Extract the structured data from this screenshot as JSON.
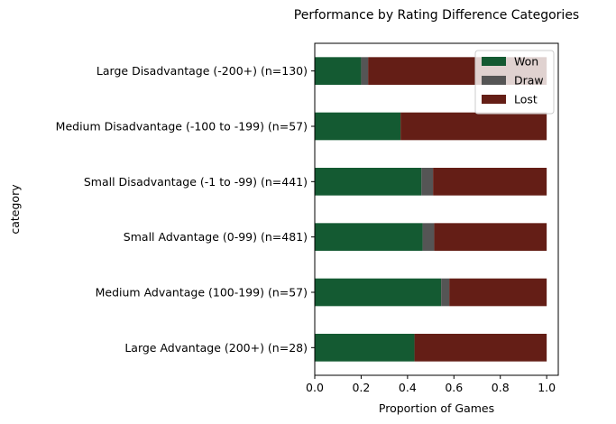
{
  "chart_data": {
    "type": "bar",
    "orientation": "horizontal",
    "stacked": true,
    "title": "Performance by Rating Difference Categories",
    "xlabel": "Proportion of Games",
    "ylabel": "category",
    "xlim": [
      0.0,
      1.05
    ],
    "xticks": [
      0.0,
      0.2,
      0.4,
      0.6,
      0.8,
      1.0
    ],
    "xtick_labels": [
      "0.0",
      "0.2",
      "0.4",
      "0.6",
      "0.8",
      "1.0"
    ],
    "grid": false,
    "legend_position": "top-right",
    "categories": [
      "Large Disadvantage (-200+) (n=130)",
      "Medium Disadvantage (-100 to -199) (n=57)",
      "Small Disadvantage (-1 to -99) (n=441)",
      "Small Advantage (0-99) (n=481)",
      "Medium Advantage (100-199) (n=57)",
      "Large Advantage (200+) (n=28)"
    ],
    "series": [
      {
        "name": "Won",
        "color": "#145a32",
        "values": [
          0.2,
          0.37,
          0.46,
          0.465,
          0.545,
          0.43
        ]
      },
      {
        "name": "Draw",
        "color": "#555555",
        "values": [
          0.03,
          0.0,
          0.05,
          0.05,
          0.035,
          0.0
        ]
      },
      {
        "name": "Lost",
        "color": "#641e16",
        "values": [
          0.77,
          0.63,
          0.49,
          0.485,
          0.42,
          0.57
        ]
      }
    ]
  }
}
